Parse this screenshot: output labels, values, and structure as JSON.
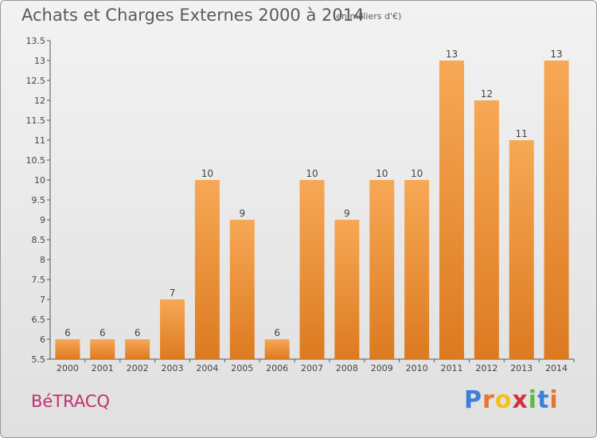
{
  "header": {
    "title": "Achats et Charges Externes 2000 à 2014",
    "unit": "(en milliers d'€)"
  },
  "footer": {
    "commune": "BéTRACQ",
    "brand_letters": [
      "P",
      "r",
      "o",
      "x",
      "i",
      "t",
      "i"
    ],
    "brand_colors": [
      "#3d7fd6",
      "#e8732a",
      "#f2c21b",
      "#d3303d",
      "#5cb84a",
      "#3d7fd6",
      "#e8732a"
    ]
  },
  "colors": {
    "bar_top": "#f7a855",
    "bar_bottom": "#dc7a20",
    "axis": "#555555",
    "text": "#444444",
    "title": "#5a5a5a",
    "commune": "#c0306e"
  },
  "chart_data": {
    "type": "bar",
    "title": "Achats et Charges Externes 2000 à 2014",
    "subtitle": "(en milliers d'€)",
    "xlabel": "",
    "ylabel": "",
    "categories": [
      "2000",
      "2001",
      "2002",
      "2003",
      "2004",
      "2005",
      "2006",
      "2007",
      "2008",
      "2009",
      "2010",
      "2011",
      "2012",
      "2013",
      "2014"
    ],
    "values": [
      6,
      6,
      6,
      7,
      10,
      9,
      6,
      10,
      9,
      10,
      10,
      13,
      12,
      11,
      13
    ],
    "data_labels": [
      "6",
      "6",
      "6",
      "7",
      "10",
      "9",
      "6",
      "10",
      "9",
      "10",
      "10",
      "13",
      "12",
      "11",
      "13"
    ],
    "ylim": [
      5.5,
      13.5
    ],
    "yticks": [
      5.5,
      6,
      6.5,
      7,
      7.5,
      8,
      8.5,
      9,
      9.5,
      10,
      10.5,
      11,
      11.5,
      12,
      12.5,
      13,
      13.5
    ],
    "ytick_labels": [
      "5.5",
      "6",
      "6.5",
      "7",
      "7.5",
      "8",
      "8.5",
      "9",
      "9.5",
      "10",
      "10.5",
      "11",
      "11.5",
      "12",
      "12.5",
      "13",
      "13.5"
    ],
    "grid": false,
    "legend": "none"
  }
}
